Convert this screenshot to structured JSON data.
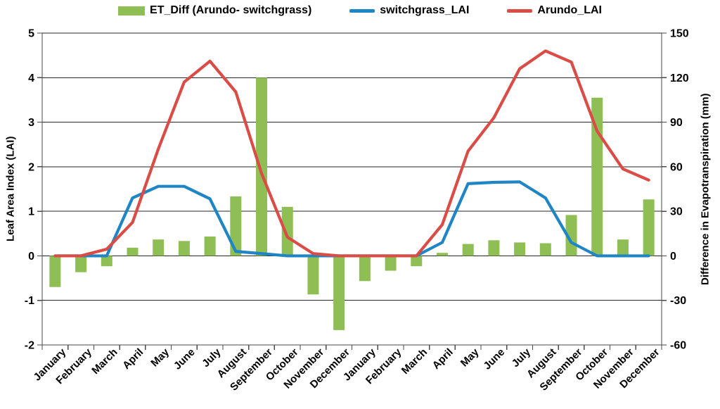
{
  "chart_data": {
    "type": "combo_bar_line",
    "categories": [
      "January",
      "February",
      "March",
      "April",
      "May",
      "June",
      "July",
      "August",
      "September",
      "October",
      "November",
      "December",
      "January",
      "February",
      "March",
      "April",
      "May",
      "June",
      "July",
      "August",
      "September",
      "October",
      "November",
      "December"
    ],
    "series": [
      {
        "name": "ET_Diff (Arundo- switchgrass)",
        "type": "bar",
        "axis": "right",
        "color": "#8FBE55",
        "values": [
          -21,
          -11,
          -7,
          5.5,
          11,
          10,
          13,
          40,
          120,
          33,
          -26,
          -50,
          -17,
          -10,
          -7,
          2,
          8,
          10.5,
          9,
          8.5,
          27.5,
          106.5,
          11,
          38
        ]
      },
      {
        "name": "switchgrass_LAI",
        "type": "line",
        "axis": "left",
        "color": "#1F85C5",
        "values": [
          0,
          0,
          0,
          1.3,
          1.56,
          1.56,
          1.28,
          0.1,
          0.05,
          0,
          0,
          0,
          0,
          0,
          0,
          0.3,
          1.62,
          1.65,
          1.66,
          1.3,
          0.3,
          0,
          0,
          0
        ]
      },
      {
        "name": "Arundo_LAI",
        "type": "line",
        "axis": "left",
        "color": "#DA4C46",
        "values": [
          0,
          0,
          0.15,
          0.75,
          2.4,
          3.9,
          4.37,
          3.68,
          1.85,
          0.42,
          0.05,
          0,
          0,
          0,
          0,
          0.7,
          2.35,
          3.1,
          4.2,
          4.6,
          4.35,
          2.8,
          1.95,
          1.7
        ]
      }
    ],
    "left_axis": {
      "title": "Leaf Area Index (LAI)",
      "min": -2,
      "max": 5,
      "step": 1,
      "tick_labels": [
        "5",
        "4",
        "3",
        "2",
        "1",
        "0",
        "-1",
        "-2"
      ]
    },
    "right_axis": {
      "title": "Difference in Evapotranspiration (mm)",
      "min": -60,
      "max": 150,
      "step": 30,
      "tick_labels": [
        "150",
        "120",
        "90",
        "60",
        "30",
        "0",
        "-30",
        "-60"
      ]
    },
    "grid": "horizontal",
    "legend_position": "top"
  },
  "colors": {
    "gridline": "#262626",
    "axis": "#4a4a4a",
    "text": "#000000",
    "background": "#FFFFFF"
  }
}
